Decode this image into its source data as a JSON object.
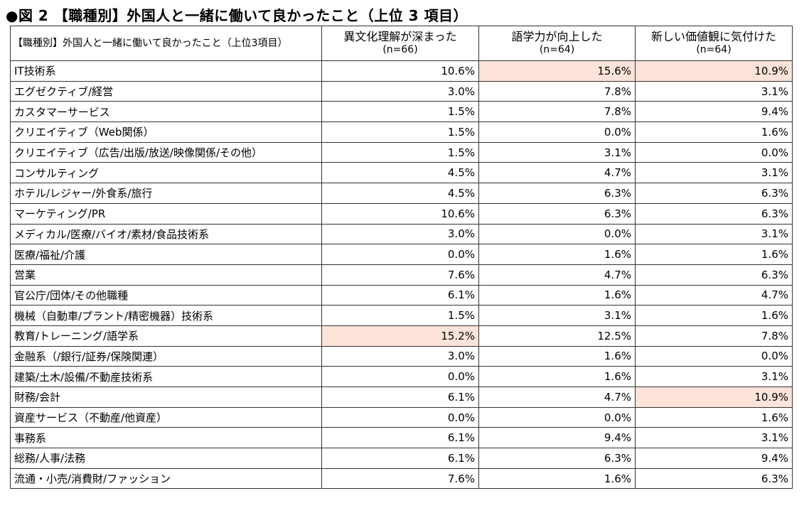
{
  "title": "●図 2 【職種別】外国人と一緒に働いて良かったこと（上位 3 項目）",
  "header": {
    "corner": "【職種別】外国人と一緒に働いて良かったこと（上位3項目）",
    "columns": [
      {
        "label": "異文化理解が深まった",
        "n": "(n=66)"
      },
      {
        "label": "語学力が向上した",
        "n": "(n=64)"
      },
      {
        "label": "新しい価値観に気付けた",
        "n": "(n=64)"
      }
    ]
  },
  "colors": {
    "highlight": "#fde3d9",
    "border": "#333333"
  },
  "chart_data": {
    "type": "table",
    "title": "●図 2 【職種別】外国人と一緒に働いて良かったこと（上位 3 項目）",
    "unit": "%",
    "columns": [
      "異文化理解が深まった",
      "語学力が向上した",
      "新しい価値観に気付けた"
    ],
    "n": [
      "(n=66)",
      "(n=64)",
      "(n=64)"
    ],
    "rows": [
      {
        "category": "IT技術系",
        "values": [
          "10.6%",
          "15.6%",
          "10.9%"
        ],
        "highlight": [
          false,
          true,
          true
        ]
      },
      {
        "category": "エグゼクティブ/経営",
        "values": [
          "3.0%",
          "7.8%",
          "3.1%"
        ],
        "highlight": [
          false,
          false,
          false
        ]
      },
      {
        "category": "カスタマーサービス",
        "values": [
          "1.5%",
          "7.8%",
          "9.4%"
        ],
        "highlight": [
          false,
          false,
          false
        ]
      },
      {
        "category": "クリエイティブ（Web関係）",
        "values": [
          "1.5%",
          "0.0%",
          "1.6%"
        ],
        "highlight": [
          false,
          false,
          false
        ]
      },
      {
        "category": "クリエイティブ（広告/出版/放送/映像関係/その他）",
        "values": [
          "1.5%",
          "3.1%",
          "0.0%"
        ],
        "highlight": [
          false,
          false,
          false
        ]
      },
      {
        "category": "コンサルティング",
        "values": [
          "4.5%",
          "4.7%",
          "3.1%"
        ],
        "highlight": [
          false,
          false,
          false
        ]
      },
      {
        "category": "ホテル/レジャー/外食系/旅行",
        "values": [
          "4.5%",
          "6.3%",
          "6.3%"
        ],
        "highlight": [
          false,
          false,
          false
        ]
      },
      {
        "category": "マーケティング/PR",
        "values": [
          "10.6%",
          "6.3%",
          "6.3%"
        ],
        "highlight": [
          false,
          false,
          false
        ]
      },
      {
        "category": "メディカル/医療/バイオ/素材/食品技術系",
        "values": [
          "3.0%",
          "0.0%",
          "3.1%"
        ],
        "highlight": [
          false,
          false,
          false
        ]
      },
      {
        "category": "医療/福祉/介護",
        "values": [
          "0.0%",
          "1.6%",
          "1.6%"
        ],
        "highlight": [
          false,
          false,
          false
        ]
      },
      {
        "category": "営業",
        "values": [
          "7.6%",
          "4.7%",
          "6.3%"
        ],
        "highlight": [
          false,
          false,
          false
        ]
      },
      {
        "category": "官公庁/団体/その他職種",
        "values": [
          "6.1%",
          "1.6%",
          "4.7%"
        ],
        "highlight": [
          false,
          false,
          false
        ]
      },
      {
        "category": "機械（自動車/プラント/精密機器）技術系",
        "values": [
          "1.5%",
          "3.1%",
          "1.6%"
        ],
        "highlight": [
          false,
          false,
          false
        ]
      },
      {
        "category": "教育/トレーニング/語学系",
        "values": [
          "15.2%",
          "12.5%",
          "7.8%"
        ],
        "highlight": [
          true,
          false,
          false
        ]
      },
      {
        "category": "金融系（/銀行/証券/保険関連）",
        "values": [
          "3.0%",
          "1.6%",
          "0.0%"
        ],
        "highlight": [
          false,
          false,
          false
        ]
      },
      {
        "category": "建築/土木/設備/不動産技術系",
        "values": [
          "0.0%",
          "1.6%",
          "3.1%"
        ],
        "highlight": [
          false,
          false,
          false
        ]
      },
      {
        "category": "財務/会計",
        "values": [
          "6.1%",
          "4.7%",
          "10.9%"
        ],
        "highlight": [
          false,
          false,
          true
        ]
      },
      {
        "category": "資産サービス（不動産/他資産）",
        "values": [
          "0.0%",
          "0.0%",
          "1.6%"
        ],
        "highlight": [
          false,
          false,
          false
        ]
      },
      {
        "category": "事務系",
        "values": [
          "6.1%",
          "9.4%",
          "3.1%"
        ],
        "highlight": [
          false,
          false,
          false
        ]
      },
      {
        "category": "総務/人事/法務",
        "values": [
          "6.1%",
          "6.3%",
          "9.4%"
        ],
        "highlight": [
          false,
          false,
          false
        ]
      },
      {
        "category": "流通・小売/消費財/ファッション",
        "values": [
          "7.6%",
          "1.6%",
          "6.3%"
        ],
        "highlight": [
          false,
          false,
          false
        ]
      }
    ]
  }
}
